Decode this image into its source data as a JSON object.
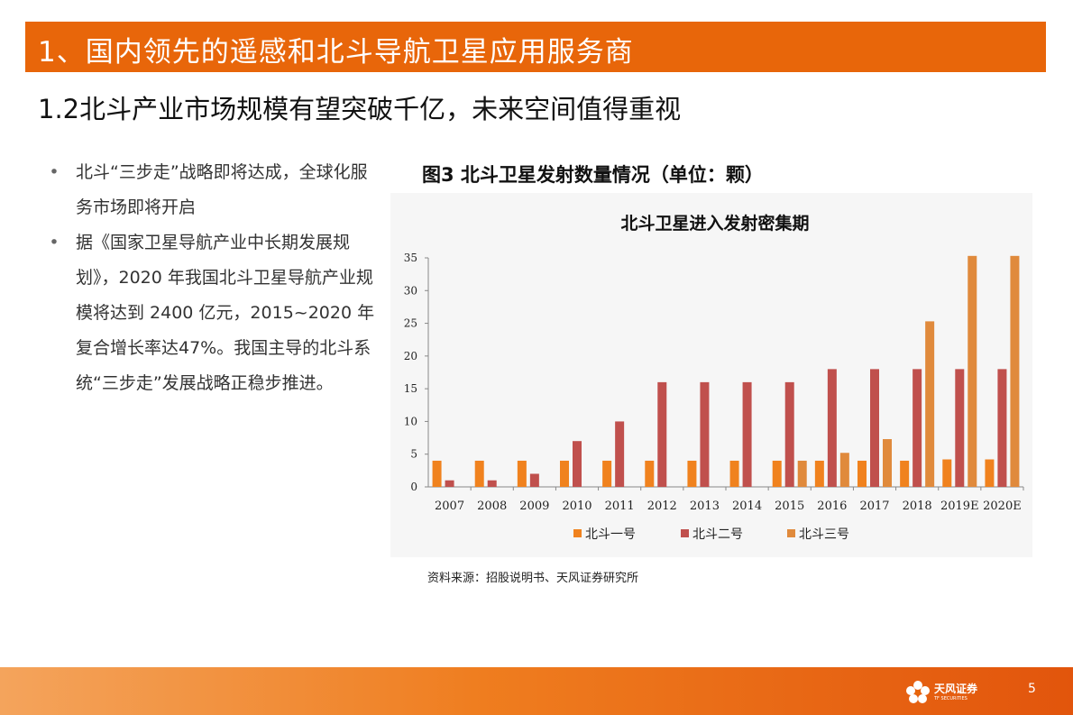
{
  "header": {
    "title": "1、国内领先的遥感和北斗导航卫星应用服务商",
    "subtitle": "1.2北斗产业市场规模有望突破千亿，未来空间值得重视"
  },
  "bullets": [
    {
      "marker": "•",
      "text": "北斗“三步走”战略即将达成，全球化服务市场即将开启"
    },
    {
      "marker": "•",
      "text": "据《国家卫星导航产业中长期发展规划》，2020 年我国北斗卫星导航产业规模将达到 2400 亿元，2015~2020 年复合增长率达47%。我国主导的北斗系统“三步走”发展战略正稳步推进。"
    }
  ],
  "figure": {
    "caption": "图3  北斗卫星发射数量情况（单位：颗）",
    "source": "资料来源：招股说明书、天风证券研究所"
  },
  "chart_data": {
    "type": "bar",
    "title": "北斗卫星进入发射密集期",
    "xlabel": "",
    "ylabel": "",
    "ylim": [
      0,
      35
    ],
    "yticks": [
      0,
      5,
      10,
      15,
      20,
      25,
      30,
      35
    ],
    "grid": false,
    "legend_position": "bottom",
    "categories": [
      "2007",
      "2008",
      "2009",
      "2010",
      "2011",
      "2012",
      "2013",
      "2014",
      "2015",
      "2016",
      "2017",
      "2018",
      "2019E",
      "2020E"
    ],
    "series": [
      {
        "name": "北斗一号",
        "color": "#f0821e",
        "values": [
          4,
          4,
          4,
          4,
          4,
          4,
          4,
          4,
          4,
          4,
          4,
          4,
          4.2,
          4.2
        ]
      },
      {
        "name": "北斗二号",
        "color": "#c0504d",
        "values": [
          1,
          1,
          2,
          7,
          10,
          16,
          16,
          16,
          16,
          18,
          18,
          18,
          18,
          18
        ]
      },
      {
        "name": "北斗三号",
        "color": "#e08a3c",
        "values": [
          0,
          0,
          0,
          0,
          0,
          0,
          0,
          0,
          4,
          5.2,
          7.3,
          25.3,
          35.3,
          35.3
        ]
      }
    ]
  },
  "footer": {
    "logo_text": "天风证券",
    "logo_sub": "TF SECURITIES",
    "page_number": "5",
    "colors": {
      "accent": "#e8660a"
    }
  }
}
